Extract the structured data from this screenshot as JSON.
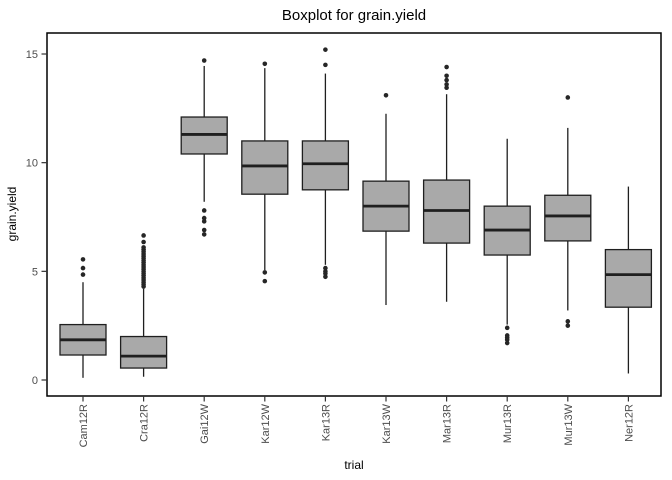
{
  "window": {
    "background": "#ffffff"
  },
  "chart_data": {
    "type": "boxplot",
    "title": "Boxplot for grain.yield",
    "xlabel": "trial",
    "ylabel": "grain.yield",
    "yticks": [
      0,
      5,
      10,
      15
    ],
    "ylim": [
      -0.75,
      16.0
    ],
    "grid": false,
    "legend": false,
    "colors": {
      "box_fill": "#a9a9a9",
      "box_stroke": "#1f1f1f",
      "median_stroke": "#1f1f1f",
      "whisker_stroke": "#1f1f1f",
      "outlier_fill": "#262626",
      "panel_border": "#000000",
      "axis_text": "#4d4d4d",
      "panel_background": "#ffffff"
    },
    "categories": [
      "Cam12R",
      "Cra12R",
      "Gai12W",
      "Kar12W",
      "Kar13R",
      "Kar13W",
      "Mar13R",
      "Mur13R",
      "Mur13W",
      "Ner12R"
    ],
    "series": [
      {
        "name": "Cam12R",
        "whisker_low": 0.1,
        "q1": 1.15,
        "median": 1.85,
        "q3": 2.55,
        "whisker_high": 4.5,
        "outliers": [
          4.85,
          5.15,
          5.55
        ]
      },
      {
        "name": "Cra12R",
        "whisker_low": 0.15,
        "q1": 0.55,
        "median": 1.1,
        "q3": 2.0,
        "whisker_high": 4.2,
        "outliers": [
          4.3,
          4.4,
          4.5,
          4.6,
          4.7,
          4.8,
          4.9,
          5.0,
          5.1,
          5.2,
          5.3,
          5.4,
          5.5,
          5.6,
          5.7,
          5.8,
          5.9,
          6.0,
          6.1,
          6.35,
          6.65
        ]
      },
      {
        "name": "Gai12W",
        "whisker_low": 8.2,
        "q1": 10.4,
        "median": 11.3,
        "q3": 12.1,
        "whisker_high": 14.45,
        "outliers": [
          14.7,
          7.8,
          7.45,
          7.3,
          6.9,
          6.7
        ]
      },
      {
        "name": "Kar12W",
        "whisker_low": 5.05,
        "q1": 8.55,
        "median": 9.85,
        "q3": 11.0,
        "whisker_high": 14.35,
        "outliers": [
          14.55,
          4.95,
          4.55
        ]
      },
      {
        "name": "Kar13R",
        "whisker_low": 5.3,
        "q1": 8.75,
        "median": 9.95,
        "q3": 11.0,
        "whisker_high": 14.1,
        "outliers": [
          15.2,
          14.5,
          5.15,
          5.0,
          4.9,
          4.75
        ]
      },
      {
        "name": "Kar13W",
        "whisker_low": 3.45,
        "q1": 6.85,
        "median": 8.0,
        "q3": 9.15,
        "whisker_high": 12.25,
        "outliers": [
          13.1
        ]
      },
      {
        "name": "Mar13R",
        "whisker_low": 3.6,
        "q1": 6.3,
        "median": 7.8,
        "q3": 9.2,
        "whisker_high": 13.15,
        "outliers": [
          14.4,
          14.0,
          13.8,
          13.6,
          13.45
        ]
      },
      {
        "name": "Mur13R",
        "whisker_low": 2.55,
        "q1": 5.75,
        "median": 6.9,
        "q3": 8.0,
        "whisker_high": 11.1,
        "outliers": [
          2.4,
          2.05,
          1.95,
          1.85,
          1.7
        ]
      },
      {
        "name": "Mur13W",
        "whisker_low": 3.2,
        "q1": 6.4,
        "median": 7.55,
        "q3": 8.5,
        "whisker_high": 11.6,
        "outliers": [
          13.0,
          2.7,
          2.5
        ]
      },
      {
        "name": "Ner12R",
        "whisker_low": 0.3,
        "q1": 3.35,
        "median": 4.85,
        "q3": 6.0,
        "whisker_high": 8.9,
        "outliers": []
      }
    ]
  }
}
